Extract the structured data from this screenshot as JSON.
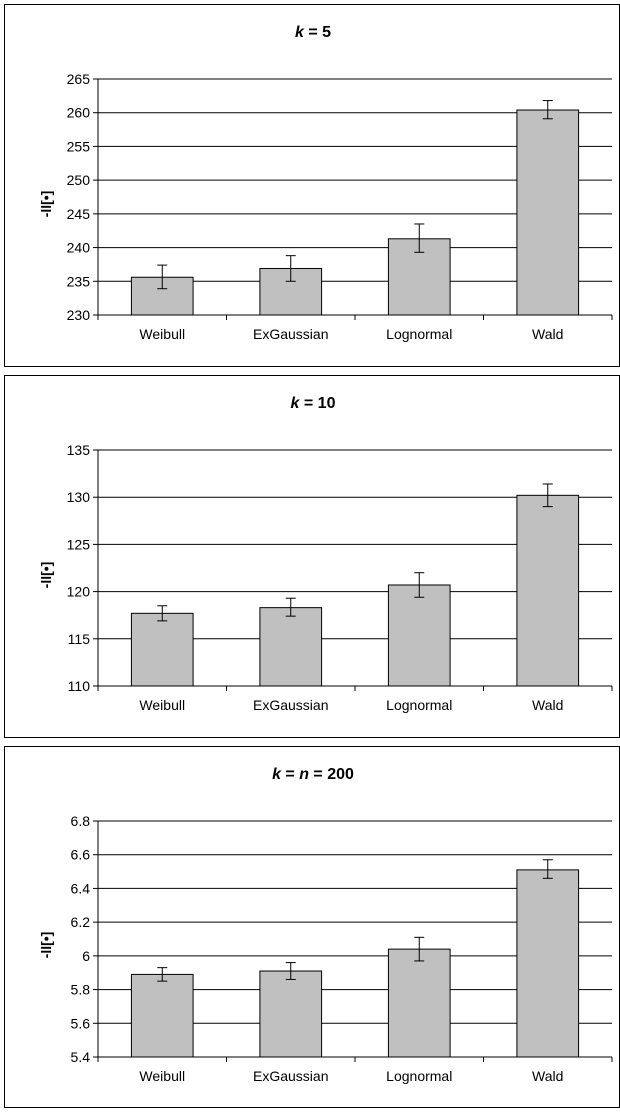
{
  "chart_data": [
    {
      "type": "bar",
      "title_prefix": "k",
      "title_rest": " = 5",
      "ylabel": "-ll[•]",
      "ylim": [
        230,
        265
      ],
      "yticks": [
        "230",
        "235",
        "240",
        "245",
        "250",
        "255",
        "260",
        "265"
      ],
      "categories": [
        "Weibull",
        "ExGaussian",
        "Lognormal",
        "Wald"
      ],
      "values": [
        235.6,
        236.9,
        241.3,
        260.4
      ],
      "err_low": [
        233.9,
        235.0,
        239.3,
        259.1
      ],
      "err_high": [
        237.4,
        238.8,
        243.5,
        261.8
      ],
      "grid": true,
      "legend": "none"
    },
    {
      "type": "bar",
      "title_prefix": "k",
      "title_rest": " = 10",
      "ylabel": "-ll[•]",
      "ylim": [
        110,
        135
      ],
      "yticks": [
        "110",
        "115",
        "120",
        "125",
        "130",
        "135"
      ],
      "categories": [
        "Weibull",
        "ExGaussian",
        "Lognormal",
        "Wald"
      ],
      "values": [
        117.7,
        118.3,
        120.7,
        130.2
      ],
      "err_low": [
        116.9,
        117.4,
        119.4,
        129.0
      ],
      "err_high": [
        118.5,
        119.3,
        122.0,
        131.4
      ],
      "grid": true,
      "legend": "none"
    },
    {
      "type": "bar",
      "title_prefix": "k",
      "title_mid": " = ",
      "title_prefix2": "n",
      "title_rest": " = 200",
      "ylabel": "-ll[•]",
      "ylim": [
        5.4,
        6.8
      ],
      "yticks": [
        "5.4",
        "5.6",
        "5.8",
        "6",
        "6.2",
        "6.4",
        "6.6",
        "6.8"
      ],
      "categories": [
        "Weibull",
        "ExGaussian",
        "Lognormal",
        "Wald"
      ],
      "values": [
        5.89,
        5.91,
        6.04,
        6.51
      ],
      "err_low": [
        5.85,
        5.86,
        5.97,
        6.46
      ],
      "err_high": [
        5.93,
        5.96,
        6.11,
        6.57
      ],
      "grid": true,
      "legend": "none"
    }
  ],
  "colors": {
    "bar_fill": "#c0c0c0",
    "bar_stroke": "#000000",
    "grid": "#000000"
  }
}
